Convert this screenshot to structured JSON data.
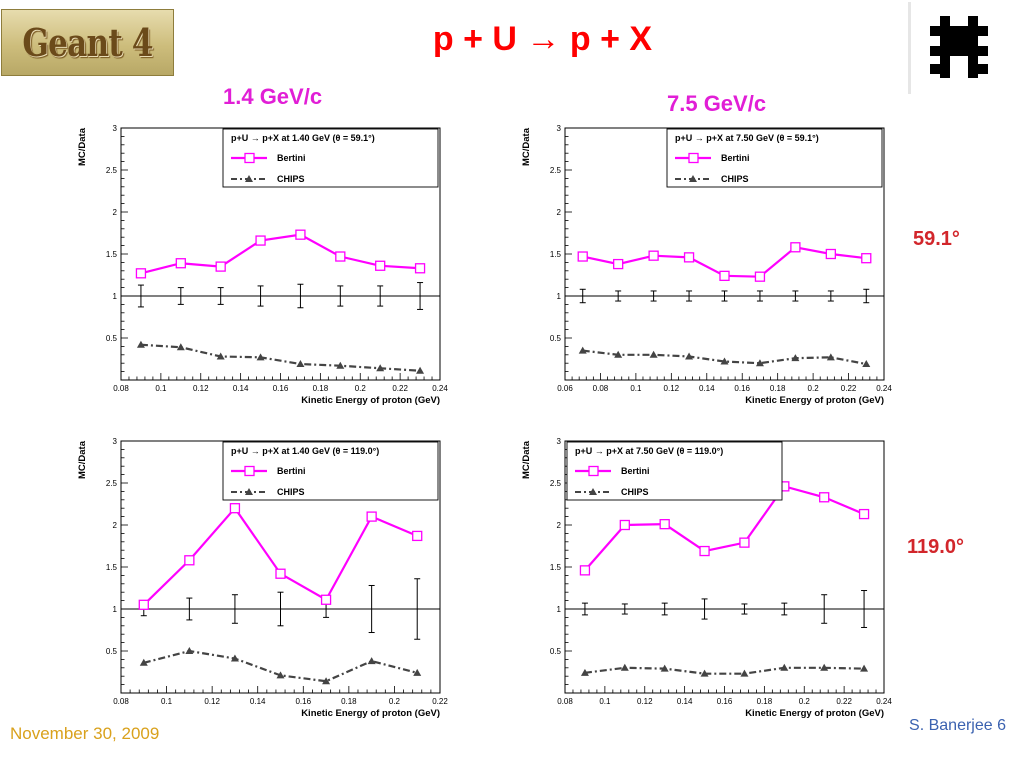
{
  "header": {
    "title": "p + U → p + X",
    "logo_text": "Geant 4"
  },
  "column_labels": [
    "1.4 GeV/c",
    "7.5 GeV/c"
  ],
  "row_labels": [
    "59.1°",
    "119.0°"
  ],
  "footer": {
    "date": "November 30, 2009",
    "author": "S. Banerjee  6"
  },
  "colors": {
    "bertini": "#ff00ff",
    "chips": "#444444",
    "title": "#ff0000",
    "column_label": "#e11ed6",
    "row_label": "#d2262b"
  },
  "chart_data": [
    {
      "type": "line",
      "legend_title": "p+U → p+X at 1.40 GeV (θ =  59.1°)",
      "ylabel": "MC/Data",
      "xlabel": "Kinetic Energy of proton (GeV)",
      "xlim": [
        0.08,
        0.24
      ],
      "ylim": [
        0,
        3
      ],
      "xticks": [
        0.08,
        0.1,
        0.12,
        0.14,
        0.16,
        0.18,
        0.2,
        0.22,
        0.24
      ],
      "xtick_labels": [
        "0.08",
        "0.1",
        "0.12",
        "0.14",
        "0.16",
        "0.18",
        "0.2",
        "0.22",
        "0.24"
      ],
      "yticks": [
        0.5,
        1,
        1.5,
        2,
        2.5,
        3
      ],
      "ytick_labels": [
        "0.5",
        "1",
        "1.5",
        "2",
        "2.5",
        "3"
      ],
      "legend_position": "top-right",
      "series": [
        {
          "name": "Bertini",
          "x": [
            0.09,
            0.11,
            0.13,
            0.15,
            0.17,
            0.19,
            0.21,
            0.23
          ],
          "y": [
            1.27,
            1.39,
            1.35,
            1.66,
            1.73,
            1.47,
            1.36,
            1.33
          ]
        },
        {
          "name": "CHIPS",
          "x": [
            0.09,
            0.11,
            0.13,
            0.15,
            0.17,
            0.19,
            0.21,
            0.23
          ],
          "y": [
            0.42,
            0.39,
            0.28,
            0.27,
            0.19,
            0.17,
            0.14,
            0.11
          ]
        }
      ],
      "data_errors": {
        "x": [
          0.09,
          0.11,
          0.13,
          0.15,
          0.17,
          0.19,
          0.21,
          0.23
        ],
        "err": [
          0.13,
          0.1,
          0.1,
          0.12,
          0.14,
          0.12,
          0.12,
          0.16
        ]
      }
    },
    {
      "type": "line",
      "legend_title": "p+U → p+X at 7.50 GeV (θ =  59.1°)",
      "ylabel": "MC/Data",
      "xlabel": "Kinetic Energy of proton (GeV)",
      "xlim": [
        0.06,
        0.24
      ],
      "ylim": [
        0,
        3
      ],
      "xticks": [
        0.06,
        0.08,
        0.1,
        0.12,
        0.14,
        0.16,
        0.18,
        0.2,
        0.22,
        0.24
      ],
      "xtick_labels": [
        "0.06",
        "0.08",
        "0.1",
        "0.12",
        "0.14",
        "0.16",
        "0.18",
        "0.2",
        "0.22",
        "0.24"
      ],
      "yticks": [
        0.5,
        1,
        1.5,
        2,
        2.5,
        3
      ],
      "ytick_labels": [
        "0.5",
        "1",
        "1.5",
        "2",
        "2.5",
        "3"
      ],
      "legend_position": "top-right",
      "series": [
        {
          "name": "Bertini",
          "x": [
            0.07,
            0.09,
            0.11,
            0.13,
            0.15,
            0.17,
            0.19,
            0.21,
            0.23
          ],
          "y": [
            1.47,
            1.38,
            1.48,
            1.46,
            1.24,
            1.23,
            1.58,
            1.5,
            1.45
          ]
        },
        {
          "name": "CHIPS",
          "x": [
            0.07,
            0.09,
            0.11,
            0.13,
            0.15,
            0.17,
            0.19,
            0.21,
            0.23
          ],
          "y": [
            0.35,
            0.3,
            0.3,
            0.28,
            0.22,
            0.2,
            0.26,
            0.27,
            0.19
          ]
        }
      ],
      "data_errors": {
        "x": [
          0.07,
          0.09,
          0.11,
          0.13,
          0.15,
          0.17,
          0.19,
          0.21,
          0.23
        ],
        "err": [
          0.08,
          0.06,
          0.06,
          0.06,
          0.06,
          0.06,
          0.06,
          0.06,
          0.08
        ]
      }
    },
    {
      "type": "line",
      "legend_title": "p+U → p+X at 1.40 GeV (θ = 119.0°)",
      "ylabel": "MC/Data",
      "xlabel": "Kinetic Energy of proton (GeV)",
      "xlim": [
        0.08,
        0.22
      ],
      "ylim": [
        0,
        3
      ],
      "xticks": [
        0.08,
        0.1,
        0.12,
        0.14,
        0.16,
        0.18,
        0.2,
        0.22
      ],
      "xtick_labels": [
        "0.08",
        "0.1",
        "0.12",
        "0.14",
        "0.16",
        "0.18",
        "0.2",
        "0.22"
      ],
      "yticks": [
        0.5,
        1,
        1.5,
        2,
        2.5,
        3
      ],
      "ytick_labels": [
        "0.5",
        "1",
        "1.5",
        "2",
        "2.5",
        "3"
      ],
      "legend_position": "top-right",
      "series": [
        {
          "name": "Bertini",
          "x": [
            0.09,
            0.11,
            0.13,
            0.15,
            0.17,
            0.19,
            0.21
          ],
          "y": [
            1.05,
            1.58,
            2.2,
            1.42,
            1.11,
            2.1,
            1.87
          ]
        },
        {
          "name": "CHIPS",
          "x": [
            0.09,
            0.11,
            0.13,
            0.15,
            0.17,
            0.19,
            0.21
          ],
          "y": [
            0.36,
            0.5,
            0.41,
            0.21,
            0.14,
            0.38,
            0.24
          ]
        }
      ],
      "data_errors": {
        "x": [
          0.09,
          0.11,
          0.13,
          0.15,
          0.17,
          0.19,
          0.21
        ],
        "err": [
          0.08,
          0.13,
          0.17,
          0.2,
          0.1,
          0.28,
          0.36
        ]
      }
    },
    {
      "type": "line",
      "legend_title": "p+U → p+X at 7.50 GeV (θ = 119.0°)",
      "ylabel": "MC/Data",
      "xlabel": "Kinetic Energy of proton (GeV)",
      "xlim": [
        0.08,
        0.24
      ],
      "ylim": [
        0,
        3
      ],
      "xticks": [
        0.08,
        0.1,
        0.12,
        0.14,
        0.16,
        0.18,
        0.2,
        0.22,
        0.24
      ],
      "xtick_labels": [
        "0.08",
        "0.1",
        "0.12",
        "0.14",
        "0.16",
        "0.18",
        "0.2",
        "0.22",
        "0.24"
      ],
      "yticks": [
        0.5,
        1,
        1.5,
        2,
        2.5,
        3
      ],
      "ytick_labels": [
        "0.5",
        "1",
        "1.5",
        "2",
        "2.5",
        "3"
      ],
      "legend_position": "top-left",
      "series": [
        {
          "name": "Bertini",
          "x": [
            0.09,
            0.11,
            0.13,
            0.15,
            0.17,
            0.19,
            0.21,
            0.23
          ],
          "y": [
            1.46,
            2.0,
            2.01,
            1.69,
            1.79,
            2.46,
            2.33,
            2.13
          ]
        },
        {
          "name": "CHIPS",
          "x": [
            0.09,
            0.11,
            0.13,
            0.15,
            0.17,
            0.19,
            0.21,
            0.23
          ],
          "y": [
            0.24,
            0.3,
            0.29,
            0.23,
            0.23,
            0.3,
            0.3,
            0.29
          ]
        }
      ],
      "data_errors": {
        "x": [
          0.09,
          0.11,
          0.13,
          0.15,
          0.17,
          0.19,
          0.21,
          0.23
        ],
        "err": [
          0.07,
          0.06,
          0.07,
          0.12,
          0.06,
          0.07,
          0.17,
          0.22
        ]
      }
    }
  ]
}
